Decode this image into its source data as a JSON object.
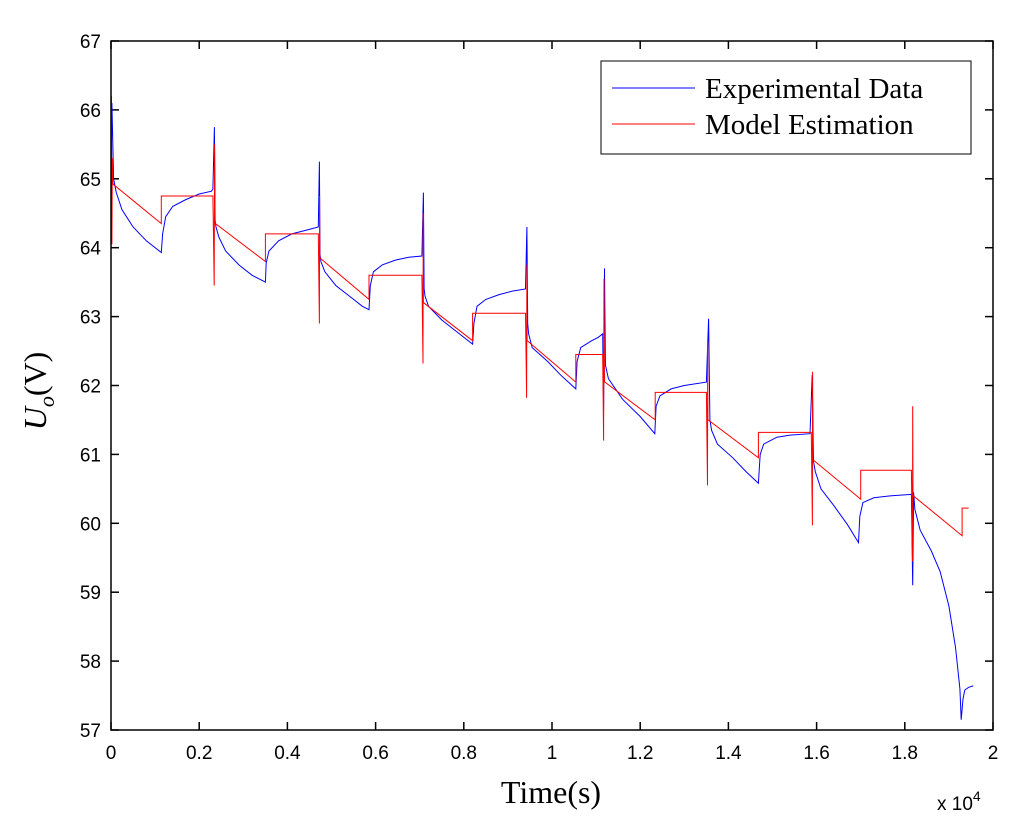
{
  "chart_data": {
    "type": "line",
    "title": "",
    "xlabel": "Time(s)",
    "ylabel_main": "U",
    "ylabel_sub": "o",
    "ylabel_unit": "(V)",
    "x_exponent_label": "x 10",
    "x_exponent_power": "4",
    "xlim": [
      0,
      2
    ],
    "ylim": [
      57,
      67
    ],
    "xticks": [
      0,
      0.2,
      0.4,
      0.6,
      0.8,
      1,
      1.2,
      1.4,
      1.6,
      1.8,
      2
    ],
    "xtick_labels": [
      "0",
      "0.2",
      "0.4",
      "0.6",
      "0.8",
      "1",
      "1.2",
      "1.4",
      "1.6",
      "1.8",
      "2"
    ],
    "yticks": [
      57,
      58,
      59,
      60,
      61,
      62,
      63,
      64,
      65,
      66,
      67
    ],
    "ytick_labels": [
      "57",
      "58",
      "59",
      "60",
      "61",
      "62",
      "63",
      "64",
      "65",
      "66",
      "67"
    ],
    "legend_position": "top-right",
    "series": [
      {
        "name": "Experimental Data",
        "color": "#0000ff",
        "x": [
          0,
          0.002,
          0.006,
          0.012,
          0.025,
          0.05,
          0.08,
          0.114,
          0.117,
          0.124,
          0.14,
          0.17,
          0.2,
          0.228,
          0.231,
          0.2345,
          0.236,
          0.238,
          0.245,
          0.26,
          0.29,
          0.32,
          0.35,
          0.352,
          0.358,
          0.38,
          0.41,
          0.44,
          0.47,
          0.4725,
          0.474,
          0.476,
          0.485,
          0.51,
          0.54,
          0.57,
          0.585,
          0.588,
          0.595,
          0.615,
          0.645,
          0.675,
          0.705,
          0.7085,
          0.71,
          0.712,
          0.72,
          0.75,
          0.78,
          0.82,
          0.823,
          0.83,
          0.85,
          0.88,
          0.91,
          0.94,
          0.943,
          0.945,
          0.947,
          0.955,
          0.99,
          1.02,
          1.054,
          1.057,
          1.065,
          1.09,
          1.105,
          1.115,
          1.117,
          1.119,
          1.121,
          1.128,
          1.16,
          1.2,
          1.233,
          1.236,
          1.245,
          1.27,
          1.3,
          1.35,
          1.355,
          1.358,
          1.362,
          1.375,
          1.41,
          1.44,
          1.468,
          1.472,
          1.48,
          1.51,
          1.54,
          1.585,
          1.59,
          1.593,
          1.597,
          1.61,
          1.64,
          1.67,
          1.695,
          1.698,
          1.705,
          1.73,
          1.77,
          1.815,
          1.818,
          1.82,
          1.823,
          1.835,
          1.86,
          1.88,
          1.9,
          1.915,
          1.925,
          1.928,
          1.932,
          1.936,
          1.945,
          1.955
        ],
        "y": [
          64.8,
          66.1,
          65.0,
          64.8,
          64.55,
          64.3,
          64.1,
          63.93,
          64.2,
          64.45,
          64.6,
          64.7,
          64.78,
          64.82,
          64.85,
          65.75,
          64.4,
          64.3,
          64.15,
          63.95,
          63.75,
          63.6,
          63.5,
          63.78,
          63.95,
          64.1,
          64.2,
          64.25,
          64.3,
          65.25,
          63.9,
          63.8,
          63.65,
          63.45,
          63.3,
          63.15,
          63.1,
          63.45,
          63.65,
          63.75,
          63.82,
          63.86,
          63.88,
          64.8,
          63.4,
          63.3,
          63.15,
          62.95,
          62.8,
          62.6,
          62.9,
          63.15,
          63.25,
          63.32,
          63.37,
          63.4,
          64.3,
          62.9,
          62.75,
          62.55,
          62.35,
          62.15,
          61.95,
          62.35,
          62.55,
          62.65,
          62.7,
          62.75,
          61.65,
          63.7,
          62.3,
          62.1,
          61.8,
          61.55,
          61.3,
          61.7,
          61.85,
          61.95,
          62.0,
          62.05,
          62.97,
          61.5,
          61.35,
          61.15,
          60.95,
          60.75,
          60.58,
          61.0,
          61.15,
          61.25,
          61.28,
          61.3,
          62.15,
          60.9,
          60.75,
          60.5,
          60.25,
          59.98,
          59.72,
          60.1,
          60.3,
          60.37,
          60.4,
          60.42,
          59.1,
          60.45,
          60.2,
          59.9,
          59.6,
          59.3,
          58.8,
          58.2,
          57.6,
          57.15,
          57.45,
          57.58,
          57.62,
          57.64
        ]
      },
      {
        "name": "Model Estimation",
        "color": "#ff0000",
        "x": [
          0,
          0.001,
          0.002,
          0.003,
          0.004,
          0.005,
          0.114,
          0.114,
          0.231,
          0.234,
          0.235,
          0.236,
          0.237,
          0.35,
          0.35,
          0.47,
          0.4725,
          0.473,
          0.4735,
          0.474,
          0.585,
          0.585,
          0.705,
          0.7075,
          0.708,
          0.7085,
          0.709,
          0.82,
          0.82,
          0.94,
          0.9425,
          0.943,
          0.9435,
          0.944,
          1.054,
          1.054,
          1.115,
          1.117,
          1.118,
          1.119,
          1.12,
          1.234,
          1.234,
          1.35,
          1.3525,
          1.353,
          1.3535,
          1.354,
          1.468,
          1.468,
          1.588,
          1.5905,
          1.591,
          1.5915,
          1.592,
          1.7,
          1.7,
          1.815,
          1.8175,
          1.818,
          1.8185,
          1.819,
          1.93,
          1.93,
          1.945
        ],
        "y": [
          64.05,
          66.2,
          64.05,
          65.3,
          64.95,
          64.92,
          64.35,
          64.75,
          64.75,
          63.45,
          65.5,
          64.35,
          64.35,
          63.8,
          64.2,
          64.2,
          62.9,
          64.75,
          63.85,
          63.85,
          63.25,
          63.6,
          63.6,
          62.32,
          64.5,
          63.2,
          63.2,
          62.65,
          63.05,
          63.05,
          61.82,
          63.75,
          62.65,
          62.65,
          62.05,
          62.45,
          62.45,
          61.2,
          63.55,
          62.05,
          62.05,
          61.5,
          61.9,
          61.9,
          60.55,
          62.65,
          61.5,
          61.5,
          60.95,
          61.32,
          61.32,
          59.97,
          62.2,
          60.92,
          60.92,
          60.35,
          60.77,
          60.77,
          59.45,
          61.7,
          60.4,
          60.4,
          59.82,
          60.22,
          60.22
        ]
      }
    ]
  }
}
